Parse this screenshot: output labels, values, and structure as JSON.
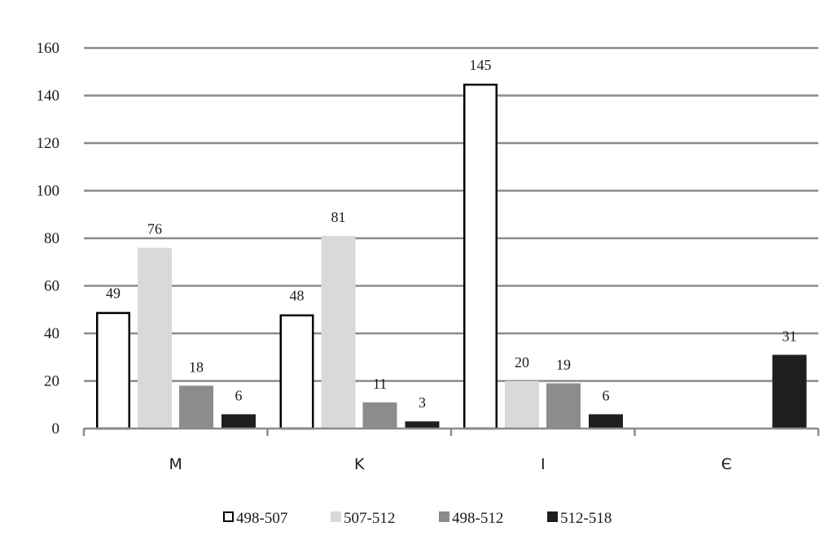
{
  "chart_data": {
    "type": "bar",
    "categories": [
      "M",
      "K",
      "I",
      "Є"
    ],
    "series": [
      {
        "name": "498-507",
        "values": [
          49,
          48,
          145,
          null
        ],
        "color": "#ffffff",
        "stroke": "#000000"
      },
      {
        "name": "507-512",
        "values": [
          76,
          81,
          20,
          null
        ],
        "color": "#d9d9d9"
      },
      {
        "name": "498-512",
        "values": [
          18,
          11,
          19,
          null
        ],
        "color": "#8c8c8c"
      },
      {
        "name": "512-518",
        "values": [
          6,
          3,
          6,
          31
        ],
        "color": "#1e1e1e"
      }
    ],
    "title": "",
    "xlabel": "",
    "ylabel": "",
    "ylim": [
      0,
      160
    ],
    "yticks": [
      0,
      20,
      40,
      60,
      80,
      100,
      120,
      140,
      160
    ],
    "grid": true,
    "data_labels": true,
    "legend_position": "bottom"
  }
}
